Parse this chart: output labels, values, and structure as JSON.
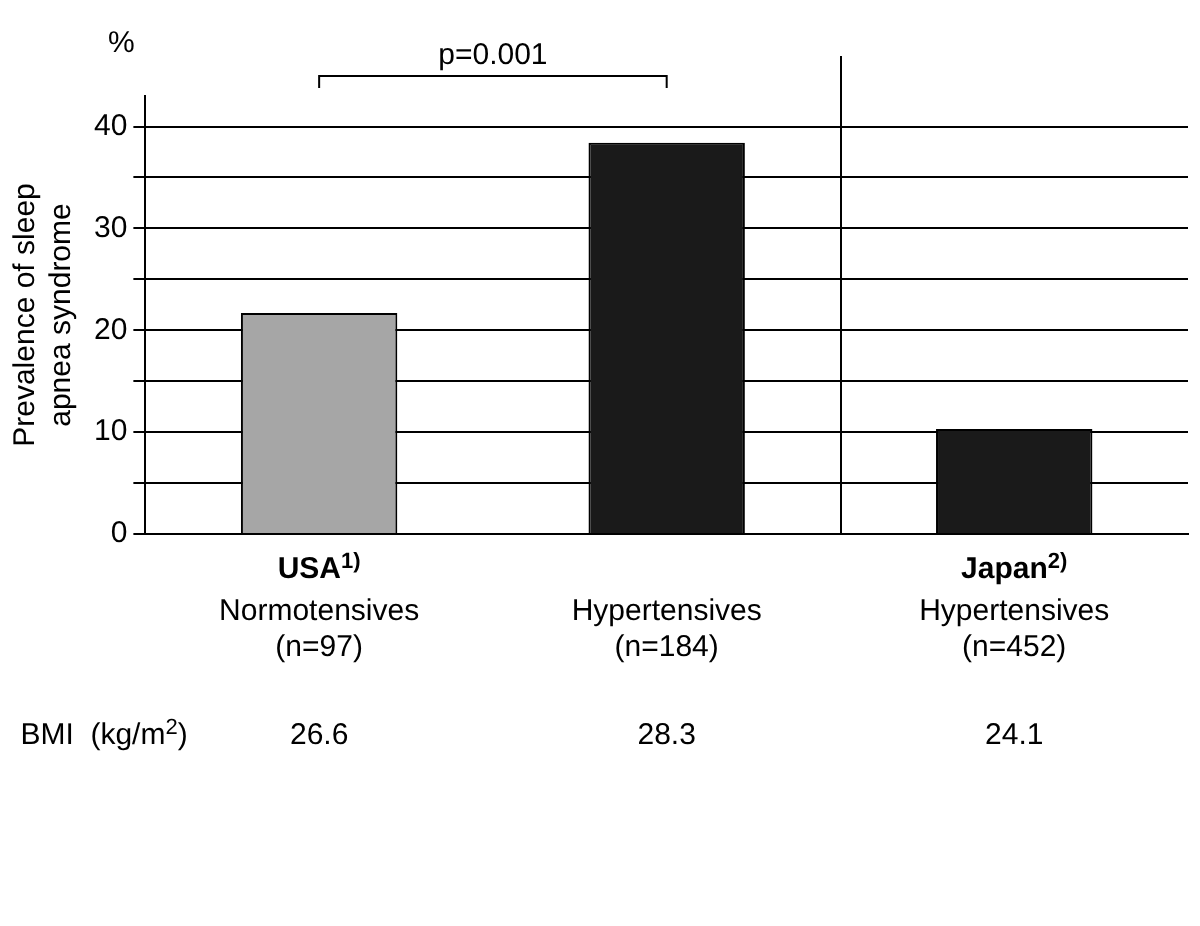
{
  "chart_data": {
    "type": "bar",
    "ylabel": "Prevalence of sleep\napnea syndrome",
    "categories": [
      "Normotensives\n(n=97)",
      "Hypertensives\n(n=184)",
      "Hypertensives\n(n=452)"
    ],
    "values": [
      21.7,
      38.4,
      10.3
    ],
    "colors": [
      "#a6a6a6",
      "#1a1a1a",
      "#1a1a1a"
    ],
    "ylim": [
      0,
      43
    ],
    "yticks": [
      0,
      {
        "value": 5,
        "label": null
      },
      10,
      {
        "value": 15,
        "label": null
      },
      20,
      {
        "value": 25,
        "label": null
      },
      30,
      {
        "value": 35,
        "label": null
      },
      40
    ],
    "grid": "y",
    "annotations": [
      "%",
      "p=0.001",
      "BMI  (kg/m$^{2}$)",
      "USA$^{1)}$",
      "Japan$^{2)}$",
      "26.6",
      "28.3",
      "24.1"
    ]
  }
}
